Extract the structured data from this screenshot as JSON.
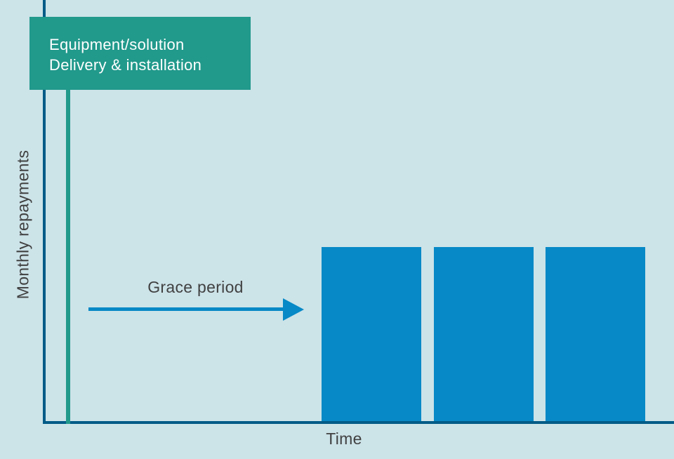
{
  "chart_data": {
    "type": "bar",
    "title": "",
    "xlabel": "Time",
    "ylabel": "Monthly repayments",
    "categories": [
      "",
      "",
      ""
    ],
    "values": [
      1,
      1,
      1
    ],
    "ylim": [
      0,
      2.42
    ],
    "grid": false,
    "legend": "none",
    "annotations": [
      {
        "id": "delivery-callout",
        "type": "callout-box",
        "line1": "Equipment/solution",
        "line2": "Delivery & installation",
        "position": "top-left, marks time zero on x-axis via vertical teal line"
      },
      {
        "id": "grace-period",
        "type": "right-arrow",
        "text": "Grace period",
        "position": "spans from time zero to the first repayment bar"
      }
    ]
  },
  "labels": {
    "callout_line1": "Equipment/solution",
    "callout_line2": "Delivery & installation",
    "grace_period": "Grace period",
    "xlabel": "Time",
    "ylabel": "Monthly repayments"
  },
  "colors": {
    "background": "#cce3e8",
    "axis": "#005b87",
    "bar": "#0689c6",
    "callout": "#21998b",
    "text": "#414141",
    "callout_text": "#ffffff"
  }
}
